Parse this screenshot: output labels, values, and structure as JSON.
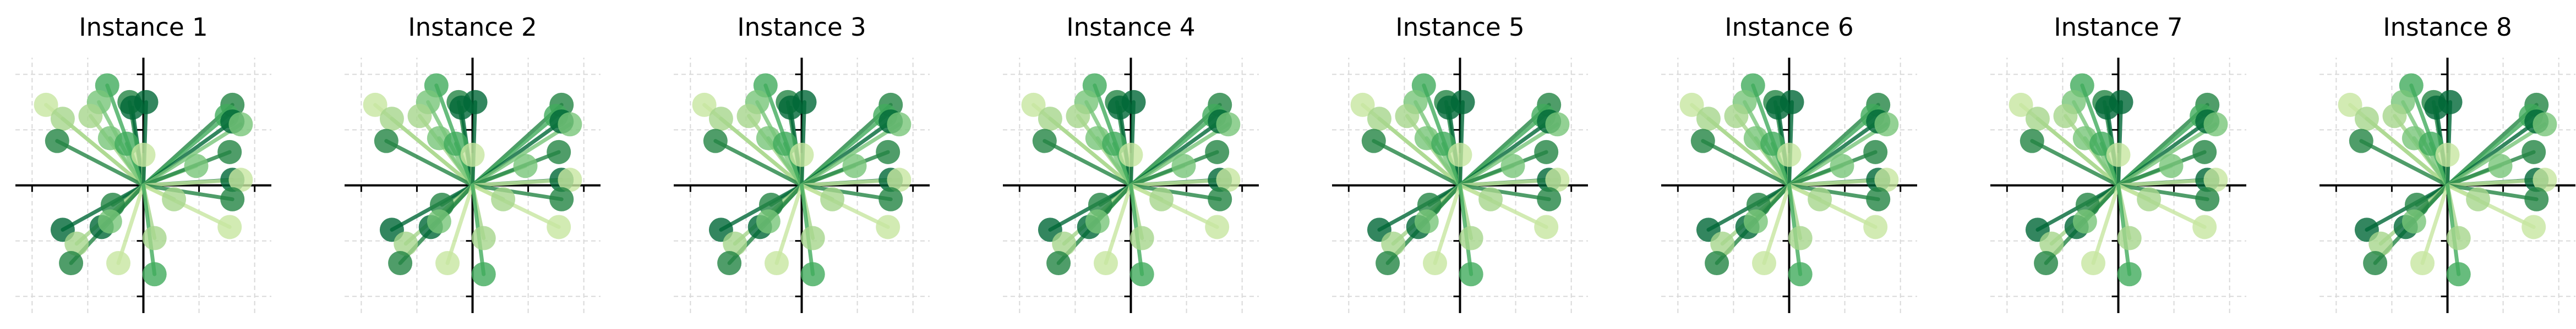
{
  "figure": {
    "panel_titles": [
      "Instance 1",
      "Instance 2",
      "Instance 3",
      "Instance 4",
      "Instance 5",
      "Instance 6",
      "Instance 7",
      "Instance 8"
    ]
  },
  "chart_data": {
    "type": "scatter",
    "subtype": "vectors-from-origin",
    "panels": 8,
    "panels_identical": true,
    "xlim": [
      -2.3,
      2.3
    ],
    "ylim": [
      -2.3,
      2.3
    ],
    "grid": true,
    "grid_style": "dashed-light-gray",
    "axes": "spines-through-origin",
    "tick_labels": false,
    "legend": "none",
    "colormap": [
      "#c7e6a0",
      "#a6d68c",
      "#78c679",
      "#41ab5d",
      "#238443",
      "#006837"
    ],
    "points": [
      {
        "x": -0.65,
        "y": 1.8,
        "c": 3
      },
      {
        "x": -1.75,
        "y": 1.45,
        "c": 0
      },
      {
        "x": -1.45,
        "y": 1.2,
        "c": 1
      },
      {
        "x": -0.8,
        "y": 1.5,
        "c": 2
      },
      {
        "x": -0.95,
        "y": 1.25,
        "c": 1
      },
      {
        "x": -1.55,
        "y": 0.8,
        "c": 4
      },
      {
        "x": -0.25,
        "y": 1.5,
        "c": 4
      },
      {
        "x": -0.2,
        "y": 1.4,
        "c": 5
      },
      {
        "x": -0.6,
        "y": 0.85,
        "c": 2
      },
      {
        "x": -0.3,
        "y": 0.75,
        "c": 3
      },
      {
        "x": 0.0,
        "y": 0.55,
        "c": 0
      },
      {
        "x": 0.05,
        "y": 1.5,
        "c": 5
      },
      {
        "x": 1.6,
        "y": 1.45,
        "c": 4
      },
      {
        "x": 1.5,
        "y": 1.25,
        "c": 3
      },
      {
        "x": 1.6,
        "y": 1.15,
        "c": 5
      },
      {
        "x": 1.75,
        "y": 1.1,
        "c": 2
      },
      {
        "x": 0.95,
        "y": 0.35,
        "c": 2
      },
      {
        "x": 1.55,
        "y": 0.6,
        "c": 4
      },
      {
        "x": 1.6,
        "y": 0.1,
        "c": 5
      },
      {
        "x": 1.75,
        "y": 0.1,
        "c": 0
      },
      {
        "x": 0.55,
        "y": -0.25,
        "c": 1
      },
      {
        "x": 1.6,
        "y": -0.25,
        "c": 4
      },
      {
        "x": 1.55,
        "y": -0.75,
        "c": 0
      },
      {
        "x": -0.55,
        "y": -0.35,
        "c": 4
      },
      {
        "x": -1.45,
        "y": -0.8,
        "c": 5
      },
      {
        "x": -0.75,
        "y": -0.75,
        "c": 5
      },
      {
        "x": -0.6,
        "y": -0.65,
        "c": 2
      },
      {
        "x": -1.2,
        "y": -1.05,
        "c": 1
      },
      {
        "x": -1.3,
        "y": -1.4,
        "c": 4
      },
      {
        "x": -0.45,
        "y": -1.4,
        "c": 0
      },
      {
        "x": 0.2,
        "y": -0.95,
        "c": 1
      },
      {
        "x": 0.2,
        "y": -1.6,
        "c": 3
      }
    ]
  }
}
